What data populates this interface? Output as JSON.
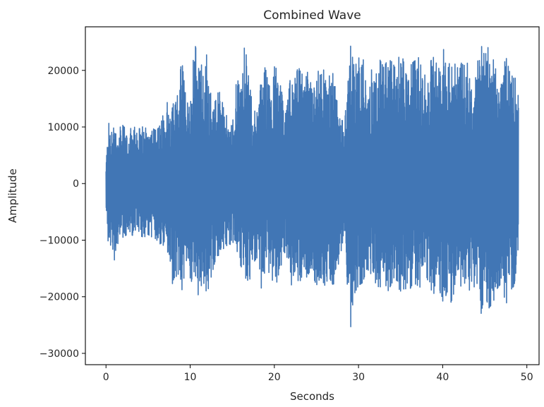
{
  "chart_data": {
    "type": "line",
    "title": "Combined Wave",
    "xlabel": "Seconds",
    "ylabel": "Amplitude",
    "xlim": [
      -2.45,
      51.45
    ],
    "ylim": [
      -32000,
      27700
    ],
    "xticks": [
      0,
      10,
      20,
      30,
      40,
      50
    ],
    "yticks": [
      -30000,
      -20000,
      -10000,
      0,
      10000,
      20000
    ],
    "ytick_labels": [
      "−30000",
      "−20000",
      "−10000",
      "0",
      "10000",
      "20000"
    ],
    "grid": false,
    "line_color": "#4176b5",
    "series": [
      {
        "envelope_x": [
          0,
          0.3,
          0.7,
          1.0,
          1.5,
          2.0,
          2.5,
          3.0,
          3.5,
          4.0,
          4.5,
          5.0,
          5.5,
          6.0,
          6.5,
          7.0,
          7.5,
          8.0,
          8.5,
          9.0,
          9.5,
          10.0,
          10.5,
          11.0,
          11.5,
          12.0,
          12.5,
          13.0,
          13.5,
          14.0,
          14.5,
          15.0,
          15.5,
          16.0,
          16.5,
          17.0,
          17.5,
          18.0,
          18.5,
          19.0,
          19.5,
          20.0,
          20.5,
          21.0,
          21.5,
          22.0,
          22.5,
          23.0,
          23.5,
          24.0,
          24.5,
          25.0,
          25.5,
          26.0,
          26.5,
          27.0,
          27.5,
          28.0,
          28.5,
          29.0,
          29.5,
          30.0,
          30.5,
          31.0,
          31.5,
          32.0,
          32.5,
          33.0,
          33.5,
          34.0,
          34.5,
          35.0,
          35.5,
          36.0,
          36.5,
          37.0,
          37.5,
          38.0,
          38.5,
          39.0,
          39.5,
          40.0,
          40.5,
          41.0,
          41.5,
          42.0,
          42.5,
          43.0,
          43.5,
          44.0,
          44.5,
          45.0,
          45.5,
          46.0,
          46.5,
          47.0,
          47.5,
          48.0,
          48.5,
          49.0
        ],
        "envelope_max": [
          4000,
          11500,
          10500,
          10300,
          9800,
          10300,
          9300,
          9800,
          10000,
          9700,
          10200,
          9300,
          9800,
          9300,
          10500,
          13500,
          15000,
          16500,
          15500,
          22000,
          15000,
          13000,
          25000,
          22000,
          20500,
          23000,
          15000,
          14500,
          17000,
          13000,
          11500,
          11000,
          20500,
          17000,
          25000,
          18000,
          13000,
          12500,
          22000,
          20000,
          19500,
          22000,
          21500,
          14500,
          13500,
          20000,
          18500,
          22000,
          17500,
          20000,
          18500,
          20500,
          19000,
          20500,
          19000,
          19500,
          14000,
          12000,
          13000,
          24800,
          20500,
          22000,
          24500,
          15000,
          20000,
          21000,
          22000,
          20500,
          22000,
          21500,
          20000,
          24000,
          20500,
          20500,
          21500,
          22000,
          23000,
          18000,
          21500,
          22500,
          20000,
          24800,
          19500,
          22500,
          21000,
          20000,
          23000,
          21000,
          19500,
          20000,
          24800,
          22500,
          24500,
          22000,
          19000,
          18500,
          22500,
          19500,
          18500,
          19000
        ],
        "envelope_min": [
          -4000,
          -11500,
          -10500,
          -13500,
          -10000,
          -9500,
          -9000,
          -9000,
          -9500,
          -9200,
          -9500,
          -9000,
          -9500,
          -9800,
          -12000,
          -11500,
          -14500,
          -18500,
          -15500,
          -19000,
          -14500,
          -20500,
          -16500,
          -20000,
          -17000,
          -19500,
          -16500,
          -13500,
          -14000,
          -12000,
          -10500,
          -11000,
          -11500,
          -14500,
          -16000,
          -19500,
          -14000,
          -13000,
          -20500,
          -15000,
          -16000,
          -18000,
          -17000,
          -13000,
          -13000,
          -18000,
          -16500,
          -17500,
          -15500,
          -17000,
          -16000,
          -18000,
          -16500,
          -18000,
          -16500,
          -18000,
          -15000,
          -11500,
          -12000,
          -29500,
          -19500,
          -18000,
          -17500,
          -15000,
          -16000,
          -17500,
          -18500,
          -17000,
          -19000,
          -17500,
          -18000,
          -19000,
          -18500,
          -19000,
          -17500,
          -18000,
          -18500,
          -16000,
          -18500,
          -19500,
          -17000,
          -22500,
          -19000,
          -21000,
          -18500,
          -17000,
          -20500,
          -19000,
          -18500,
          -18000,
          -23500,
          -19500,
          -22000,
          -21000,
          -18500,
          -17500,
          -21500,
          -19000,
          -18000,
          -12000
        ]
      }
    ]
  }
}
